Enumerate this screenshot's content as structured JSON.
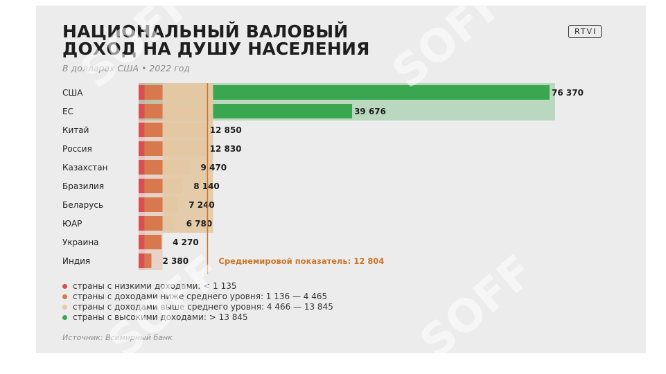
{
  "title_line1": "НАЦИОНАЛЬНЫЙ ВАЛОВЫЙ",
  "title_line2": "ДОХОД НА ДУШУ НАСЕЛЕНИЯ",
  "subtitle": "В долларах США • 2022 год",
  "logo": "RTVI",
  "watermark": "SOFF",
  "source": "Источник: Всемирный банк",
  "colors": {
    "low": "#d94f4f",
    "lower_middle": "#d8784d",
    "upper_middle": "#e3c8a3",
    "high": "#3aa64f",
    "average_line": "#c8762a"
  },
  "chart_data": {
    "type": "bar",
    "orientation": "horizontal",
    "categories": [
      "США",
      "ЕС",
      "Китай",
      "Россия",
      "Казахстан",
      "Бразилия",
      "Беларусь",
      "ЮАР",
      "Украина",
      "Индия"
    ],
    "values": [
      76370,
      39676,
      12850,
      12830,
      9470,
      8140,
      7240,
      6780,
      4270,
      2380
    ],
    "value_labels": [
      "76 370",
      "39 676",
      "12 850",
      "12 830",
      "9 470",
      "8 140",
      "7 240",
      "6 780",
      "4 270",
      "2 380"
    ],
    "thresholds": [
      1135,
      4465,
      13845
    ],
    "average": 12804,
    "average_label": "Среднемировой показатель: 12 804",
    "xlim": [
      0,
      76370
    ],
    "grid": false,
    "legend_position": "bottom-left",
    "legend": [
      {
        "key": "low",
        "label": "страны с низкими доходами: < 1 135"
      },
      {
        "key": "lower_middle",
        "label": "страны с доходами ниже среднего уровня: 1 136 — 4 465"
      },
      {
        "key": "upper_middle",
        "label": "страны с доходами выше среднего уровня: 4 466 — 13 845"
      },
      {
        "key": "high",
        "label": "страны с высокими доходами: > 13 845"
      }
    ]
  }
}
